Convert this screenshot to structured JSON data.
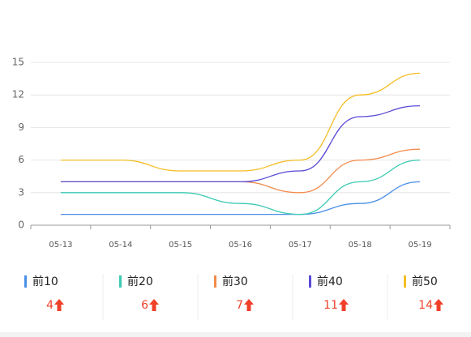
{
  "chart_data": {
    "type": "line",
    "categories": [
      "05-13",
      "05-14",
      "05-15",
      "05-16",
      "05-17",
      "05-18",
      "05-19"
    ],
    "series": [
      {
        "name": "前10",
        "color": "#4a8fe7",
        "values": [
          1,
          1,
          1,
          1,
          1,
          2,
          4
        ]
      },
      {
        "name": "前20",
        "color": "#3ccab2",
        "values": [
          3,
          3,
          3,
          2,
          1,
          4,
          6
        ]
      },
      {
        "name": "前30",
        "color": "#f28b4b",
        "values": [
          4,
          4,
          4,
          4,
          3,
          6,
          7
        ]
      },
      {
        "name": "前40",
        "color": "#5a4bd6",
        "values": [
          4,
          4,
          4,
          4,
          5,
          10,
          11
        ]
      },
      {
        "name": "前50",
        "color": "#f5bd25",
        "values": [
          6,
          6,
          5,
          5,
          6,
          12,
          14
        ]
      }
    ],
    "ylim": [
      0,
      15
    ],
    "yticks": [
      0,
      3,
      6,
      9,
      12,
      15
    ],
    "grid": true,
    "legend_values": [
      4,
      6,
      7,
      11,
      14
    ]
  }
}
